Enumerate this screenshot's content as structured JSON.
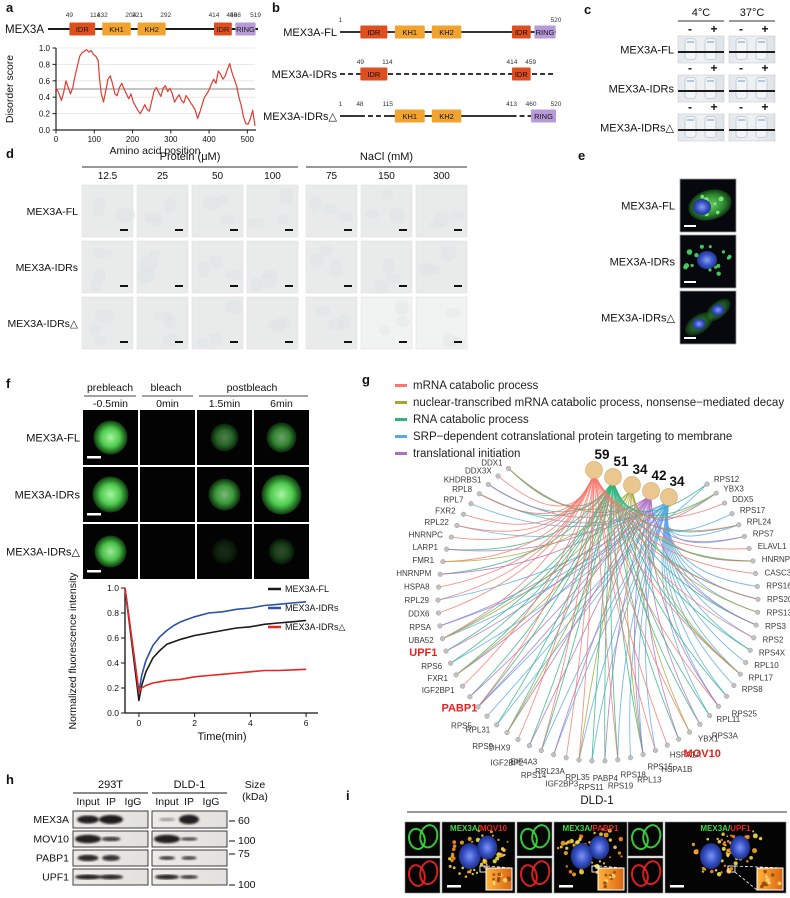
{
  "panels": {
    "a": {
      "label": "a",
      "protein": "MEX3A",
      "domain_colors": {
        "IDR": "#DE4E1E",
        "KH": "#F0A42F",
        "RING": "#B79BD8"
      },
      "domains": [
        {
          "name": "IDR",
          "start": 49,
          "end": 114,
          "type": "IDR"
        },
        {
          "name": "KH1",
          "start": 132,
          "end": 204,
          "type": "KH"
        },
        {
          "name": "KH2",
          "start": 221,
          "end": 292,
          "type": "KH"
        },
        {
          "name": "IDR",
          "start": 414,
          "end": 459,
          "type": "IDR"
        },
        {
          "name": "RING",
          "start": 468,
          "end": 519,
          "type": "RING"
        }
      ],
      "plot": {
        "ylabel": "Disorder score",
        "xlabel": "Amino acid position",
        "yticks": [
          "0.0",
          "0.2",
          "0.4",
          "0.6",
          "0.8",
          "1.0"
        ],
        "xticks": [
          "0",
          "100",
          "200",
          "300",
          "400",
          "500"
        ]
      }
    },
    "b": {
      "label": "b",
      "constructs": [
        {
          "name": "MEX3A-FL",
          "markers": [
            1,
            520
          ],
          "line": "solid"
        },
        {
          "name": "MEX3A-IDRs",
          "markers": [
            49,
            114,
            414,
            459
          ],
          "line": "dashed"
        },
        {
          "name": "MEX3A-IDRs△",
          "markers": [
            1,
            48,
            115,
            413,
            460,
            520
          ],
          "line": "mixed"
        }
      ]
    },
    "c": {
      "label": "c",
      "temps": [
        "4°C",
        "37°C"
      ],
      "signs": [
        "-",
        "+"
      ],
      "rows": [
        "MEX3A-FL",
        "MEX3A-IDRs",
        "MEX3A-IDRs△"
      ]
    },
    "d": {
      "label": "d",
      "groups": [
        {
          "title": "Protein (μM)",
          "cols": [
            "12.5",
            "25",
            "50",
            "100"
          ]
        },
        {
          "title": "NaCl (mM)",
          "cols": [
            "75",
            "150",
            "300"
          ]
        }
      ],
      "rows": [
        "MEX3A-FL",
        "MEX3A-IDRs",
        "MEX3A-IDRs△"
      ]
    },
    "e": {
      "label": "e",
      "rows": [
        "MEX3A-FL",
        "MEX3A-IDRs",
        "MEX3A-IDRs△"
      ]
    },
    "f": {
      "label": "f",
      "phases": [
        {
          "name": "prebleach",
          "times": [
            "-0.5min"
          ]
        },
        {
          "name": "bleach",
          "times": [
            "0min"
          ]
        },
        {
          "name": "postbleach",
          "times": [
            "1.5min",
            "6min"
          ]
        }
      ],
      "rows": [
        "MEX3A-FL",
        "MEX3A-IDRs",
        "MEX3A-IDRs△"
      ]
    },
    "g": {
      "label": "g",
      "legend": [
        {
          "term": "mRNA catabolic process",
          "color": "#F8766D"
        },
        {
          "term": "nuclear-transcribed mRNA catabolic process, nonsense−mediated decay",
          "color": "#A8A432"
        },
        {
          "term": "RNA catabolic process",
          "color": "#2FB47C"
        },
        {
          "term": "SRP−dependent cotranslational protein targeting to membrane",
          "color": "#56A8E8"
        },
        {
          "term": "translational initiation",
          "color": "#AF6EC0"
        }
      ],
      "hubs": [
        {
          "count": "59",
          "color": "#F8766D"
        },
        {
          "count": "51",
          "color": "#2FB47C"
        },
        {
          "count": "34",
          "color": "#A8A432"
        },
        {
          "count": "42",
          "color": "#AF6EC0"
        },
        {
          "count": "34",
          "color": "#56A8E8"
        }
      ],
      "hub_fill": "#E9C78F",
      "genes": [
        "DDX1",
        "DDX3X",
        "KHDRBS1",
        "RPL8",
        "RPL7",
        "FXR2",
        "RPL22",
        "HNRNPC",
        "LARP1",
        "FMR1",
        "HNRNPM",
        "HSPA8",
        "RPL29",
        "DDX6",
        "RPSA",
        "UBA52",
        "UPF1",
        "RPS6",
        "FXR1",
        "IGF2BP1",
        "PABP1",
        "RPS5",
        "RPL31",
        "RPS9",
        "DHX9",
        "IGF2BP2",
        "EIF4A3",
        "RPS14",
        "RPL23A",
        "IGF2BP3",
        "RPL35",
        "RPS11",
        "PABP4",
        "RPS19",
        "RPS18",
        "RPL13",
        "RPS15",
        "HSPA1B",
        "HSPA1A",
        "MOV10",
        "YBX1",
        "RPS3A",
        "RPL11",
        "RPS25",
        "RPS8",
        "RPL17",
        "RPL10",
        "RPS4X",
        "RPS2",
        "RPS3",
        "RPS13",
        "RPS20",
        "RPS16",
        "CASC3",
        "HNRNPU",
        "ELAVL1",
        "RPS7",
        "RPL24",
        "RPS17",
        "DDX5",
        "YBX3",
        "RPS12"
      ],
      "highlighted": [
        "UPF1",
        "PABP1",
        "MOV10"
      ],
      "highlight_color": "#E8211D"
    },
    "h": {
      "label": "h",
      "cell_lines": [
        "293T",
        "DLD-1"
      ],
      "lanes": [
        "Input",
        "IP",
        "IgG"
      ],
      "size_header": [
        "Size",
        "(kDa)"
      ],
      "rows": [
        "MEX3A",
        "MOV10",
        "PABP1",
        "UPF1"
      ],
      "sizes": [
        "60",
        "100",
        "75",
        "100"
      ]
    },
    "i": {
      "label": "i",
      "title": "DLD-1",
      "pairs": [
        {
          "green": "MEX3A",
          "red": "MOV10"
        },
        {
          "green": "MEX3A",
          "red": "PABP1"
        },
        {
          "green": "MEX3A",
          "red": "UPF1"
        }
      ],
      "green_color": "#3ddc3d",
      "red_color": "#ee2222"
    }
  },
  "chart_data": [
    {
      "id": "disorder",
      "type": "line",
      "title": "",
      "xlabel": "Amino acid position",
      "ylabel": "Disorder score",
      "xlim": [
        0,
        520
      ],
      "ylim": [
        0,
        1
      ],
      "threshold": 0.5,
      "line_color": "#E23B32",
      "x": [
        0,
        8,
        14,
        20,
        26,
        32,
        38,
        44,
        50,
        56,
        62,
        68,
        74,
        80,
        86,
        92,
        98,
        104,
        110,
        114,
        118,
        124,
        130,
        136,
        142,
        148,
        154,
        160,
        166,
        172,
        178,
        184,
        190,
        196,
        202,
        208,
        214,
        220,
        226,
        232,
        238,
        244,
        250,
        256,
        262,
        268,
        274,
        280,
        286,
        292,
        298,
        304,
        310,
        316,
        322,
        328,
        334,
        340,
        346,
        352,
        358,
        364,
        370,
        376,
        382,
        388,
        394,
        400,
        406,
        412,
        418,
        424,
        430,
        436,
        442,
        448,
        454,
        460,
        466,
        472,
        478,
        484,
        490,
        496,
        502,
        508,
        514,
        520
      ],
      "y": [
        0.52,
        0.44,
        0.36,
        0.46,
        0.6,
        0.52,
        0.44,
        0.52,
        0.66,
        0.78,
        0.9,
        0.94,
        0.96,
        0.98,
        0.95,
        0.97,
        0.92,
        0.9,
        0.85,
        0.62,
        0.45,
        0.34,
        0.48,
        0.62,
        0.66,
        0.56,
        0.44,
        0.42,
        0.52,
        0.57,
        0.5,
        0.44,
        0.38,
        0.44,
        0.34,
        0.29,
        0.24,
        0.2,
        0.25,
        0.31,
        0.25,
        0.23,
        0.35,
        0.47,
        0.52,
        0.46,
        0.41,
        0.51,
        0.54,
        0.47,
        0.51,
        0.44,
        0.34,
        0.39,
        0.43,
        0.36,
        0.33,
        0.42,
        0.38,
        0.33,
        0.29,
        0.24,
        0.14,
        0.22,
        0.31,
        0.4,
        0.44,
        0.49,
        0.56,
        0.62,
        0.57,
        0.72,
        0.68,
        0.62,
        0.66,
        0.74,
        0.81,
        0.7,
        0.62,
        0.54,
        0.4,
        0.3,
        0.16,
        0.08,
        0.07,
        0.14,
        0.24,
        0.05
      ]
    },
    {
      "id": "frap",
      "type": "line",
      "xlabel": "Time(min)",
      "ylabel": "Normalized fluorescence intensity",
      "xlim": [
        -0.5,
        6.5
      ],
      "ylim": [
        0,
        1
      ],
      "xticks": [
        0,
        2,
        4,
        6
      ],
      "yticks": [
        "0.0",
        "0.2",
        "0.4",
        "0.6",
        "0.8",
        "1.0"
      ],
      "legend_position": "top-right",
      "series": [
        {
          "name": "MEX3A-FL",
          "color": "#1a1a1a",
          "x": [
            -0.5,
            0,
            0.1,
            0.25,
            0.5,
            0.75,
            1,
            1.25,
            1.5,
            2,
            2.5,
            3,
            3.5,
            4,
            4.5,
            5,
            5.5,
            6
          ],
          "y": [
            1.0,
            0.1,
            0.22,
            0.33,
            0.44,
            0.5,
            0.55,
            0.57,
            0.59,
            0.62,
            0.64,
            0.66,
            0.68,
            0.69,
            0.71,
            0.72,
            0.73,
            0.74
          ]
        },
        {
          "name": "MEX3A-IDRs",
          "color": "#2B52A3",
          "x": [
            -0.5,
            0,
            0.1,
            0.25,
            0.5,
            0.75,
            1,
            1.25,
            1.5,
            2,
            2.5,
            3,
            3.5,
            4,
            4.5,
            5,
            5.5,
            6
          ],
          "y": [
            1.0,
            0.17,
            0.3,
            0.42,
            0.54,
            0.61,
            0.66,
            0.7,
            0.73,
            0.77,
            0.8,
            0.81,
            0.83,
            0.84,
            0.86,
            0.87,
            0.88,
            0.89
          ]
        },
        {
          "name": "MEX3A-IDRs△",
          "color": "#E8251F",
          "x": [
            -0.5,
            0,
            0.1,
            0.25,
            0.5,
            0.75,
            1,
            1.5,
            2,
            2.5,
            3,
            3.5,
            4,
            4.5,
            5,
            5.5,
            6
          ],
          "y": [
            1.0,
            0.17,
            0.2,
            0.22,
            0.24,
            0.25,
            0.26,
            0.27,
            0.29,
            0.3,
            0.31,
            0.32,
            0.33,
            0.34,
            0.34,
            0.345,
            0.35
          ]
        }
      ]
    }
  ]
}
